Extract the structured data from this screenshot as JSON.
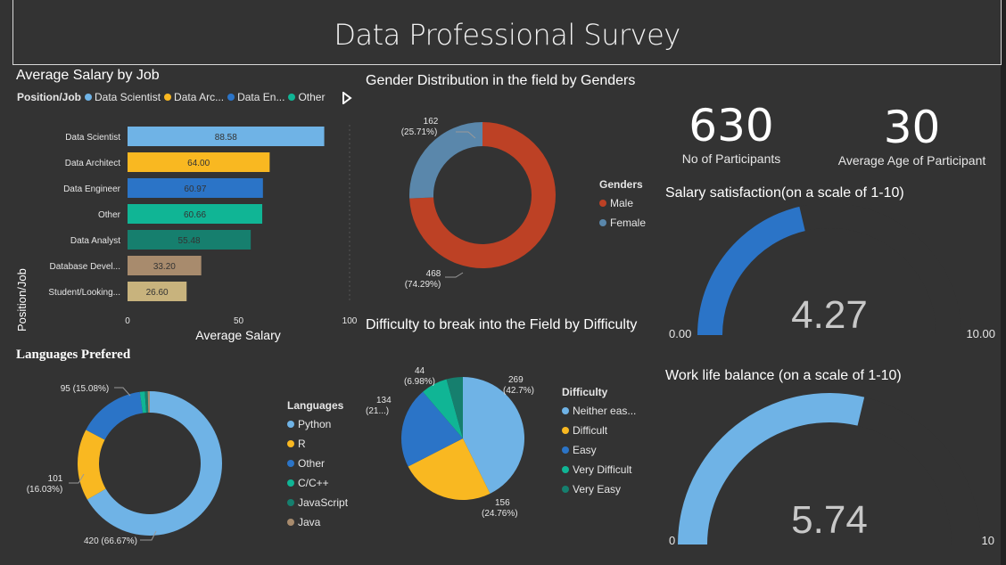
{
  "title": "Data Professional Survey",
  "salary_by_job": {
    "title": "Average Salary by Job",
    "legend_title": "Position/Job",
    "legend": [
      {
        "label": "Data Scientist",
        "color": "#6fb3e6"
      },
      {
        "label": "Data Arc...",
        "color": "#f9b821"
      },
      {
        "label": "Data En...",
        "color": "#2b74c7"
      },
      {
        "label": "Other",
        "color": "#10b595"
      }
    ],
    "xlabel": "Average Salary",
    "ylabel": "Position/Job",
    "x_ticks": [
      "0",
      "50",
      "100"
    ]
  },
  "gender": {
    "title": "Gender Distribution in the field by Genders",
    "legend_title": "Genders",
    "labels": {
      "female_count": "162",
      "female_pct": "(25.71%)",
      "male_count": "468",
      "male_pct": "(74.29%)"
    }
  },
  "kpis": {
    "participants_value": "630",
    "participants_label": "No of Participants",
    "age_value": "30",
    "age_label": "Average Age of Participant"
  },
  "salary_satisfaction": {
    "title": "Salary satisfaction(on a scale of 1-10)",
    "value_text": "4.27",
    "min_text": "0.00",
    "max_text": "10.00"
  },
  "work_life": {
    "title": "Work life balance (on a scale of 1-10)",
    "value_text": "5.74",
    "min_text": "0",
    "max_text": "10"
  },
  "languages": {
    "title": "Languages Prefered",
    "legend_title": "Languages",
    "labels": {
      "python": "420 (66.67%)",
      "r_count": "101",
      "r_pct": "(16.03%)",
      "other": "95 (15.08%)"
    }
  },
  "difficulty": {
    "title": "Difficulty to break into the Field by Difficulty",
    "legend_title": "Difficulty",
    "labels": {
      "neither_count": "269",
      "neither_pct": "(42.7%)",
      "difficult_count": "156",
      "difficult_pct": "(24.76%)",
      "easy_count": "134",
      "easy_pct": "(21...)",
      "vd_count": "44",
      "vd_pct": "(6.98%)"
    }
  },
  "chart_data": [
    {
      "type": "bar",
      "title": "Average Salary by Job",
      "orientation": "horizontal",
      "categories": [
        "Data Scientist",
        "Data Architect",
        "Data Engineer",
        "Other",
        "Data Analyst",
        "Database Devel...",
        "Student/Looking..."
      ],
      "values": [
        88.58,
        64.0,
        60.97,
        60.66,
        55.48,
        33.2,
        26.6
      ],
      "data_labels": [
        "88.58",
        "64.00",
        "60.97",
        "60.66",
        "55.48",
        "33.20",
        "26.60"
      ],
      "colors": [
        "#6fb3e6",
        "#f9b821",
        "#2b74c7",
        "#10b595",
        "#167f6e",
        "#a88b6d",
        "#c8b37d"
      ],
      "xlim": [
        0,
        100
      ],
      "xlabel": "Average Salary",
      "ylabel": "Position/Job"
    },
    {
      "type": "pie",
      "donut": true,
      "title": "Gender Distribution in the field by Genders",
      "categories": [
        "Male",
        "Female"
      ],
      "values": [
        468,
        162
      ],
      "percentages": [
        74.29,
        25.71
      ],
      "colors": [
        "#bd4125",
        "#5a87ab"
      ]
    },
    {
      "type": "pie",
      "donut": true,
      "title": "Languages Prefered",
      "categories": [
        "Python",
        "R",
        "Other",
        "C/C++",
        "JavaScript",
        "Java"
      ],
      "values": [
        420,
        101,
        95,
        7,
        4,
        3
      ],
      "percentages": [
        66.67,
        16.03,
        15.08,
        1.1,
        0.6,
        0.5
      ],
      "colors": [
        "#6fb3e6",
        "#f9b821",
        "#2b74c7",
        "#10b595",
        "#167f6e",
        "#a88b6d"
      ]
    },
    {
      "type": "pie",
      "donut": false,
      "title": "Difficulty to break into the Field by Difficulty",
      "categories": [
        "Neither eas...",
        "Difficult",
        "Easy",
        "Very Difficult",
        "Very Easy"
      ],
      "values": [
        269,
        156,
        134,
        44,
        27
      ],
      "percentages": [
        42.7,
        24.76,
        21.27,
        6.98,
        4.29
      ],
      "colors": [
        "#6fb3e6",
        "#f9b821",
        "#2b74c7",
        "#10b595",
        "#167f6e"
      ]
    },
    {
      "type": "gauge",
      "title": "Salary satisfaction(on a scale of 1-10)",
      "value": 4.27,
      "min": 0,
      "max": 10,
      "color": "#2b74c7"
    },
    {
      "type": "gauge",
      "title": "Work life balance (on a scale of 1-10)",
      "value": 5.74,
      "min": 0,
      "max": 10,
      "color": "#6fb3e6"
    }
  ]
}
